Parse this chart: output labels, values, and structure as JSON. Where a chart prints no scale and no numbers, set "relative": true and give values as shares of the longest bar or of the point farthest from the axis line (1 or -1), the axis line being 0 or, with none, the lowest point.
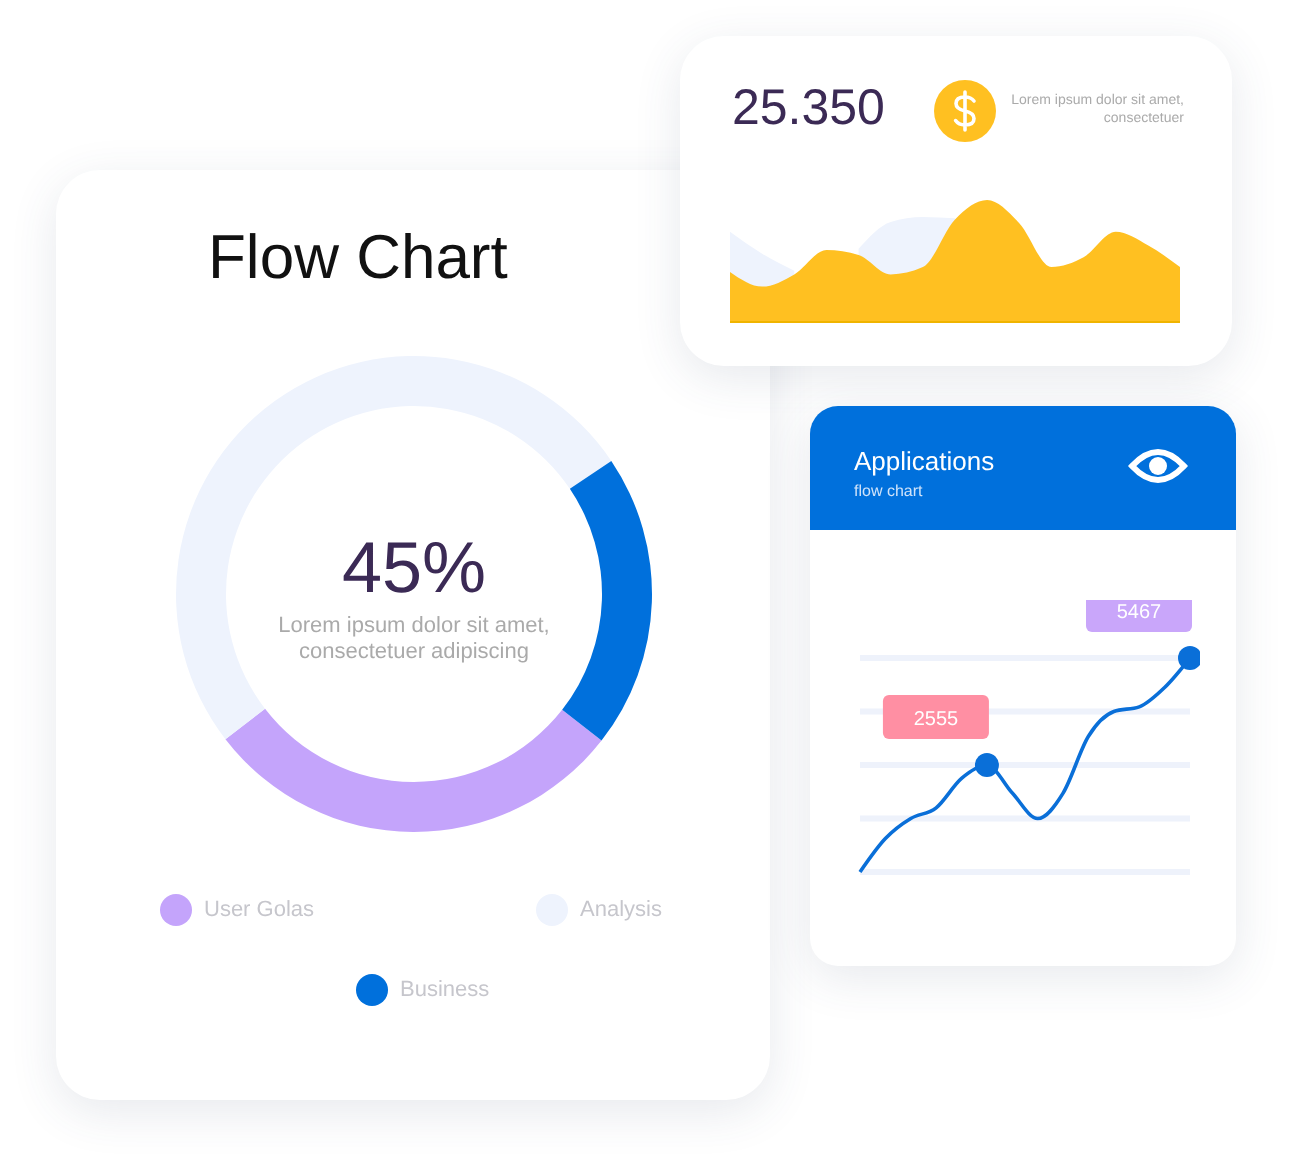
{
  "chart_data": [
    {
      "type": "donut",
      "title": "Flow Chart",
      "annotations": [
        "45%",
        "Lorem ipsum dolor sit amet, consectetuer adipiscing"
      ],
      "categories": [
        "User Golas",
        "Analysis",
        "Business"
      ],
      "values": [
        29,
        51,
        20
      ],
      "colors": [
        "#c4a4fb",
        "#eef3fd",
        "#0070dc"
      ],
      "legend": "bottom"
    },
    {
      "type": "area",
      "relative": true,
      "annotations": [
        "25.350",
        "Lorem ipsum dolor sit amet, consectetuer"
      ],
      "categories": [
        null,
        null,
        null,
        null,
        null,
        null,
        null,
        null,
        null,
        null,
        null,
        null,
        null,
        null,
        null
      ],
      "series": [
        {
          "color": "#eef3fd",
          "values": [
            0.74,
            0.56,
            0.42,
            null,
            0.6,
            0.82,
            0.86,
            0.85,
            null,
            null,
            null,
            null,
            null,
            null,
            null
          ]
        },
        {
          "color": "#ffc021",
          "values": [
            0.41,
            0.29,
            0.39,
            0.59,
            0.55,
            0.39,
            0.45,
            0.84,
            1,
            0.81,
            0.45,
            0.53,
            0.74,
            0.63,
            0.45
          ]
        }
      ]
    },
    {
      "type": "line",
      "title": "Applications",
      "subtitle": "flow chart",
      "categories": [
        null,
        null,
        null,
        null,
        null,
        null,
        null,
        null,
        null,
        null,
        null,
        null,
        null,
        null
      ],
      "series": [
        {
          "color": "#0a6fd8",
          "values": [
            -357,
            553,
            1099,
            1390,
            2191,
            2555,
            1791,
            1099,
            1791,
            3338,
            4011,
            4138,
            4666,
            5467
          ],
          "value_labels": [
            null,
            null,
            null,
            null,
            null,
            "2555",
            null,
            null,
            null,
            null,
            null,
            null,
            null,
            "5467"
          ]
        }
      ],
      "ylim": [
        -357,
        5467
      ],
      "yticks": [
        {
          "value": -357,
          "label": null
        },
        {
          "value": 1099,
          "label": null
        },
        {
          "value": 2555,
          "label": null
        },
        {
          "value": 4011,
          "label": null
        },
        {
          "value": 5467,
          "label": null
        }
      ],
      "grid": "y",
      "tick_labels": false,
      "line_style": "solid"
    }
  ]
}
